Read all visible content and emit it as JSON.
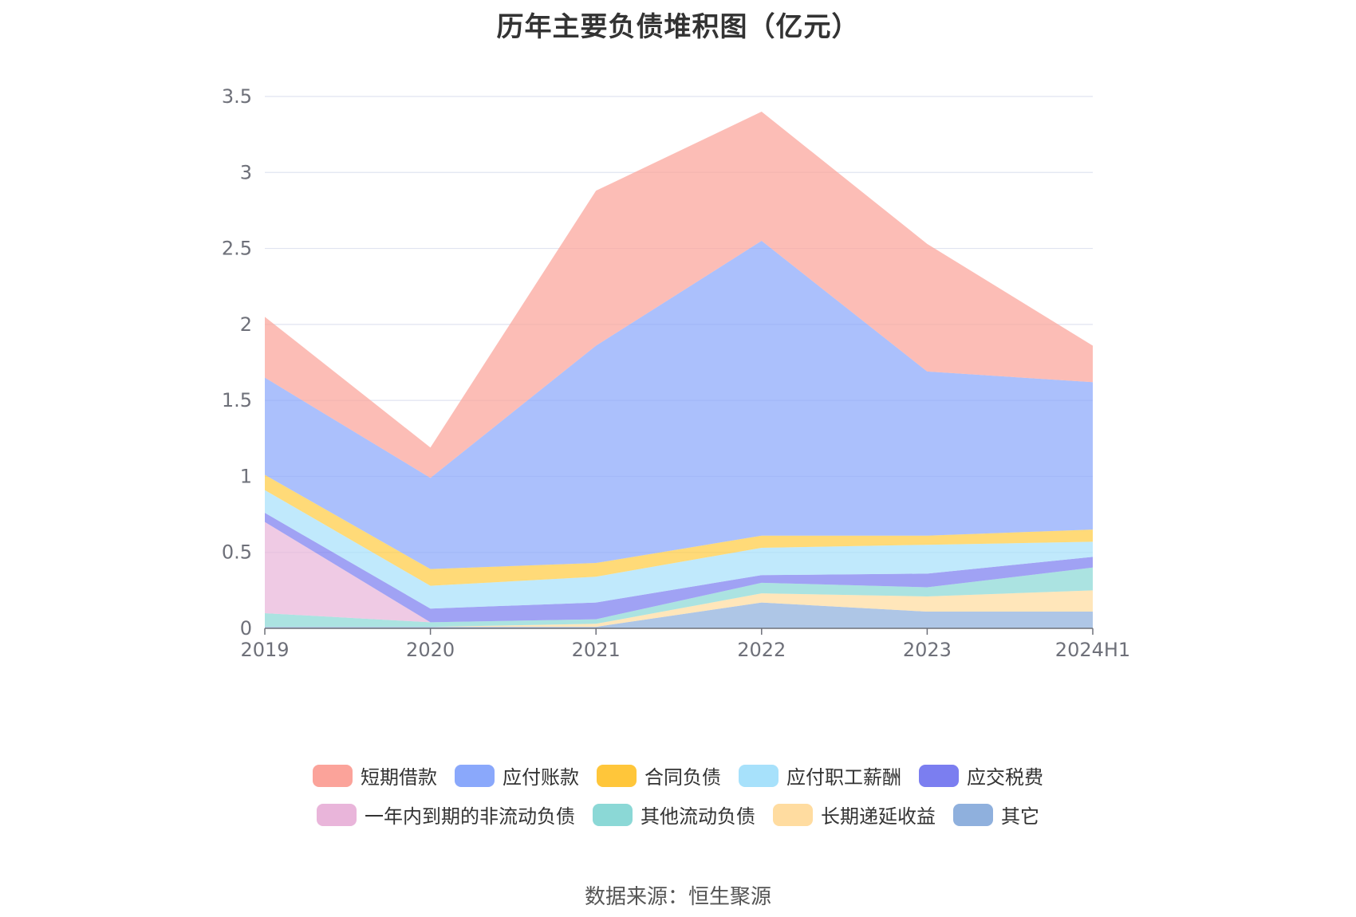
{
  "chart_data": {
    "type": "area",
    "stacked": true,
    "title": "历年主要负债堆积图（亿元）",
    "categories": [
      "2019",
      "2020",
      "2021",
      "2022",
      "2023",
      "2024H1"
    ],
    "ylim": [
      0,
      3.5
    ],
    "yticks": [
      0,
      0.5,
      1,
      1.5,
      2,
      2.5,
      3,
      3.5
    ],
    "grid": true,
    "legend_position": "bottom",
    "series": [
      {
        "name": "其它",
        "color": "#8fb0dd",
        "values": [
          0.01,
          0.01,
          0.01,
          0.17,
          0.11,
          0.11
        ]
      },
      {
        "name": "长期递延收益",
        "color": "#ffdca0",
        "values": [
          0.0,
          0.0,
          0.02,
          0.06,
          0.1,
          0.14
        ]
      },
      {
        "name": "其他流动负债",
        "color": "#8bd8d6",
        "values": [
          0.09,
          0.03,
          0.03,
          0.07,
          0.06,
          0.15
        ]
      },
      {
        "name": "一年内到期的非流动负债",
        "color": "#e9b5da",
        "values": [
          0.6,
          0.0,
          0.0,
          0.0,
          0.0,
          0.0
        ]
      },
      {
        "name": "应交税费",
        "color": "#7b7ef0",
        "values": [
          0.06,
          0.09,
          0.11,
          0.05,
          0.09,
          0.07
        ]
      },
      {
        "name": "应付职工薪酬",
        "color": "#a7e1fb",
        "values": [
          0.15,
          0.15,
          0.17,
          0.18,
          0.19,
          0.1
        ]
      },
      {
        "name": "合同负债",
        "color": "#ffcc44",
        "values": [
          0.1,
          0.11,
          0.09,
          0.08,
          0.06,
          0.08
        ]
      },
      {
        "name": "应付账款",
        "color": "#8aa8fb",
        "values": [
          0.64,
          0.6,
          1.43,
          1.94,
          1.08,
          0.97
        ]
      },
      {
        "name": "短期借款",
        "color": "#fba39a",
        "values": [
          0.4,
          0.2,
          1.02,
          0.85,
          0.84,
          0.24
        ]
      }
    ]
  },
  "legend": {
    "rows": [
      [
        {
          "label": "短期借款",
          "color": "#fba39a"
        },
        {
          "label": "应付账款",
          "color": "#8aa8fb"
        },
        {
          "label": "合同负债",
          "color": "#ffc63a"
        },
        {
          "label": "应付职工薪酬",
          "color": "#a7e1fb"
        },
        {
          "label": "应交税费",
          "color": "#7b7ef0"
        }
      ],
      [
        {
          "label": "一年内到期的非流动负债",
          "color": "#e9b5da"
        },
        {
          "label": "其他流动负债",
          "color": "#8bd8d6"
        },
        {
          "label": "长期递延收益",
          "color": "#ffdca0"
        },
        {
          "label": "其它",
          "color": "#8fb0dd"
        }
      ]
    ]
  },
  "source_text": "数据来源：恒生聚源",
  "colors": {
    "grid": "#e0e4f0",
    "axis": "#6e7079",
    "tick_text": "#6e7079"
  }
}
